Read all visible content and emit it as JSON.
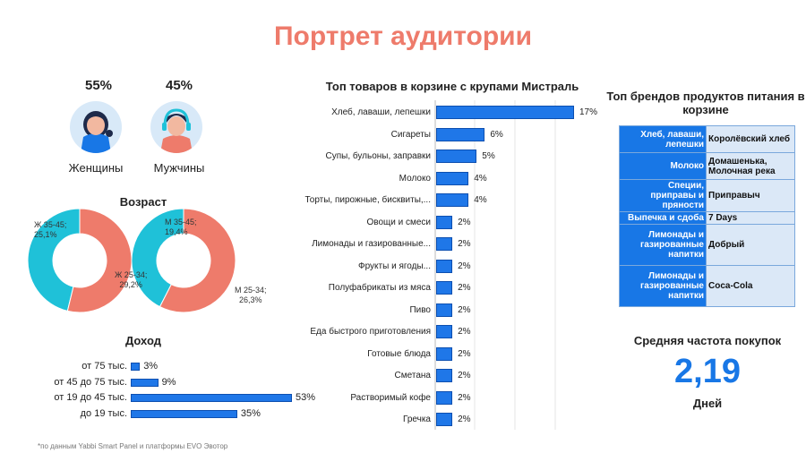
{
  "title": "Портрет аудитории",
  "gender": {
    "female": {
      "percent": "55%",
      "label": "Женщины"
    },
    "male": {
      "percent": "45%",
      "label": "Мужчины"
    }
  },
  "age": {
    "title": "Возраст",
    "female_donut": {
      "a_label": "Ж 35-45;",
      "a_value": "25,1%",
      "b_label": "Ж 25-34;",
      "b_value": "29,2%"
    },
    "male_donut": {
      "a_label": "М 35-45;",
      "a_value": "19,4%",
      "b_label": "М 25-34;",
      "b_value": "26,3%"
    }
  },
  "income": {
    "title": "Доход"
  },
  "products": {
    "title": "Топ товаров в корзине с крупами Мистраль"
  },
  "brands": {
    "title": "Топ брендов продуктов питания в корзине",
    "rows": [
      {
        "category": "Хлеб, лаваши, лепешки",
        "brand": "Королёвский хлеб"
      },
      {
        "category": "Молоко",
        "brand": "Домашенька, Молочная река"
      },
      {
        "category": "Специи, приправы и пряности",
        "brand": "Приправыч"
      },
      {
        "category": "Выпечка и сдоба",
        "brand": "7 Days"
      },
      {
        "category": "Лимонады и газированные напитки",
        "brand": "Добрый"
      },
      {
        "category": "Лимонады и газированные напитки",
        "brand": "Coca-Cola"
      }
    ]
  },
  "frequency": {
    "title": "Средняя частота покупок",
    "value": "2,19",
    "unit": "Дней"
  },
  "footnote": "*по данным Yabbi Smart Panel и платформы EVO Эвотор",
  "colors": {
    "accent_blue": "#1877e6",
    "coral": "#ee7b6b",
    "cyan": "#1fc1d8"
  },
  "chart_data": [
    {
      "type": "pie",
      "donut": true,
      "title": "Возраст",
      "slices": [
        {
          "label": "Ж 35-45",
          "value": 25.1,
          "display": "25,1%",
          "color": "#1fc1d8"
        },
        {
          "label": "Ж 25-34",
          "value": 29.2,
          "display": "29,2%",
          "color": "#ee7b6b"
        }
      ]
    },
    {
      "type": "pie",
      "donut": true,
      "slices": [
        {
          "label": "М 35-45",
          "value": 19.4,
          "display": "19,4%",
          "color": "#1fc1d8"
        },
        {
          "label": "М 25-34",
          "value": 26.3,
          "display": "26,3%",
          "color": "#ee7b6b"
        }
      ]
    },
    {
      "type": "bar",
      "orientation": "horizontal",
      "title": "Доход",
      "categories": [
        "от 75 тыс.",
        "от 45 до 75 тыс.",
        "от 19 до 45 тыс.",
        "до 19 тыс."
      ],
      "values": [
        3,
        9,
        53,
        35
      ],
      "value_labels": [
        "3%",
        "9%",
        "53%",
        "35%"
      ]
    },
    {
      "type": "bar",
      "orientation": "horizontal",
      "title": "Топ товаров в корзине с крупами Мистраль",
      "categories": [
        "Хлеб, лаваши, лепешки",
        "Сигареты",
        "Супы, бульоны, заправки",
        "Молоко",
        "Торты, пирожные, бисквиты,...",
        "Овощи и смеси",
        "Лимонады и газированные...",
        "Фрукты и ягоды...",
        "Полуфабрикаты из мяса",
        "Пиво",
        "Еда быстрого приготовления",
        "Готовые блюда",
        "Сметана",
        "Растворимый кофе",
        "Гречка"
      ],
      "values": [
        17,
        6,
        5,
        4,
        4,
        2,
        2,
        2,
        2,
        2,
        2,
        2,
        2,
        2,
        2
      ],
      "value_labels": [
        "17%",
        "6%",
        "5%",
        "4%",
        "4%",
        "2%",
        "2%",
        "2%",
        "2%",
        "2%",
        "2%",
        "2%",
        "2%",
        "2%",
        "2%"
      ],
      "grid": true
    }
  ]
}
